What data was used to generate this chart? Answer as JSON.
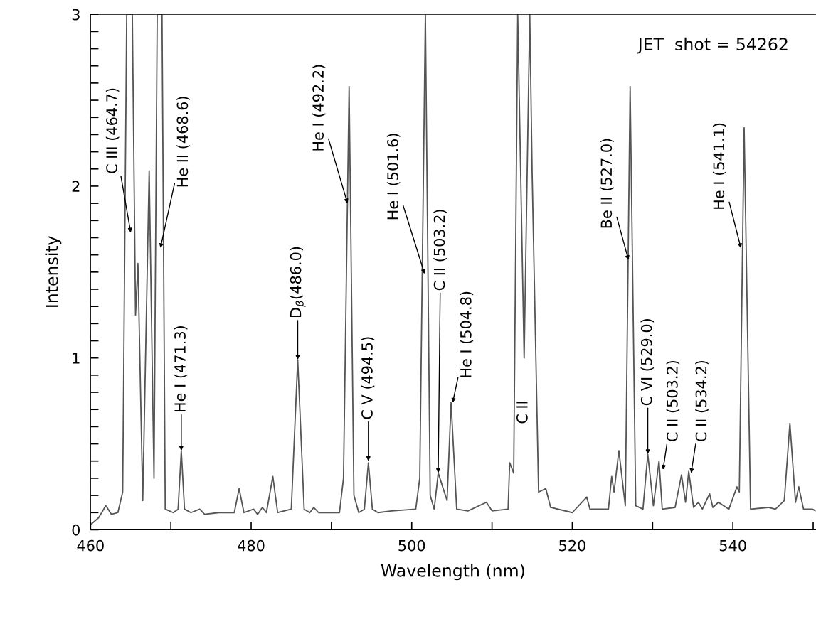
{
  "chart_data": {
    "type": "line",
    "xlabel": "Wavelength (nm)",
    "ylabel": "Intensity",
    "xlim": [
      460,
      550.3
    ],
    "ylim": [
      0,
      3
    ],
    "xticks": [
      460,
      {
        "value": 470,
        "label": null
      },
      480,
      {
        "value": 490,
        "label": null
      },
      500,
      {
        "value": 510,
        "label": null
      },
      520,
      {
        "value": 530,
        "label": null
      },
      540,
      {
        "value": 550,
        "label": null
      }
    ],
    "yticks": [
      0,
      {
        "value": 0.1,
        "label": null
      },
      {
        "value": 0.2,
        "label": null
      },
      {
        "value": 0.3,
        "label": null
      },
      {
        "value": 0.4,
        "label": null
      },
      {
        "value": 0.5,
        "label": null
      },
      {
        "value": 0.6,
        "label": null
      },
      {
        "value": 0.7,
        "label": null
      },
      {
        "value": 0.8,
        "label": null
      },
      {
        "value": 0.9,
        "label": null
      },
      1,
      {
        "value": 1.1,
        "label": null
      },
      {
        "value": 1.2,
        "label": null
      },
      {
        "value": 1.3,
        "label": null
      },
      {
        "value": 1.4,
        "label": null
      },
      {
        "value": 1.5,
        "label": null
      },
      {
        "value": 1.6,
        "label": null
      },
      {
        "value": 1.7,
        "label": null
      },
      {
        "value": 1.8,
        "label": null
      },
      {
        "value": 1.9,
        "label": null
      },
      2,
      {
        "value": 2.1,
        "label": null
      },
      {
        "value": 2.2,
        "label": null
      },
      {
        "value": 2.3,
        "label": null
      },
      {
        "value": 2.4,
        "label": null
      },
      {
        "value": 2.5,
        "label": null
      },
      {
        "value": 2.6,
        "label": null
      },
      {
        "value": 2.7,
        "label": null
      },
      {
        "value": 2.8,
        "label": null
      },
      {
        "value": 2.9,
        "label": null
      },
      3
    ],
    "grid": false,
    "marker": "none",
    "line_style": "solid",
    "series": [
      {
        "color": "#555555",
        "x": [
          460.0,
          461.0,
          461.9,
          462.6,
          463.4,
          464.0,
          464.5,
          465.0,
          465.2,
          465.6,
          465.9,
          466.5,
          467.3,
          467.9,
          468.3,
          468.9,
          469.3,
          470.3,
          470.9,
          471.3,
          471.7,
          472.5,
          473.6,
          474.2,
          476.0,
          477.9,
          478.5,
          479.1,
          480.3,
          480.8,
          481.4,
          481.9,
          482.7,
          483.3,
          485.0,
          485.8,
          486.6,
          487.3,
          487.8,
          488.4,
          491.0,
          491.5,
          492.2,
          492.8,
          493.4,
          494.1,
          494.6,
          495.1,
          495.8,
          497.5,
          500.5,
          501.0,
          501.7,
          502.3,
          502.8,
          503.3,
          504.4,
          504.9,
          505.6,
          507.0,
          509.3,
          510.0,
          512.0,
          512.2,
          512.7,
          513.2,
          514.0,
          514.7,
          515.0,
          515.8,
          516.7,
          517.3,
          520.0,
          521.8,
          522.2,
          524.5,
          524.9,
          525.2,
          525.8,
          526.6,
          527.2,
          527.9,
          528.8,
          529.4,
          530.1,
          530.8,
          531.2,
          532.8,
          533.6,
          534.1,
          534.5,
          535.1,
          535.7,
          536.2,
          537.1,
          537.5,
          538.2,
          539.5,
          540.5,
          540.8,
          541.4,
          542.2,
          544.4,
          545.3,
          546.4,
          547.1,
          547.8,
          548.2,
          548.8,
          549.9,
          550.3
        ],
        "values": [
          0.03,
          0.07,
          0.14,
          0.09,
          0.1,
          0.22,
          3,
          3,
          3,
          1.25,
          1.55,
          0.17,
          2.09,
          0.3,
          3,
          3,
          0.12,
          0.1,
          0.12,
          0.46,
          0.12,
          0.1,
          0.12,
          0.09,
          0.1,
          0.1,
          0.24,
          0.1,
          0.12,
          0.09,
          0.13,
          0.1,
          0.31,
          0.1,
          0.12,
          0.99,
          0.12,
          0.1,
          0.13,
          0.1,
          0.1,
          0.3,
          2.58,
          0.2,
          0.1,
          0.12,
          0.39,
          0.12,
          0.1,
          0.11,
          0.12,
          0.3,
          3,
          0.2,
          0.12,
          0.33,
          0.17,
          0.74,
          0.12,
          0.11,
          0.16,
          0.11,
          0.12,
          0.39,
          0.33,
          3,
          1.0,
          3,
          2.07,
          0.22,
          0.24,
          0.13,
          0.1,
          0.19,
          0.12,
          0.12,
          0.31,
          0.22,
          0.46,
          0.14,
          2.58,
          0.14,
          0.12,
          0.44,
          0.14,
          0.4,
          0.12,
          0.13,
          0.32,
          0.16,
          0.34,
          0.13,
          0.16,
          0.12,
          0.21,
          0.13,
          0.16,
          0.12,
          0.25,
          0.22,
          2.34,
          0.12,
          0.13,
          0.12,
          0.17,
          0.62,
          0.16,
          0.25,
          0.12,
          0.12,
          0.11
        ]
      }
    ],
    "annotations": [
      {
        "text": "C III (464.7)",
        "x": 465.0,
        "y": 1.73
      },
      {
        "text": "He II (468.6)",
        "x": 468.7,
        "y": 1.64
      },
      {
        "text": "He I (471.3)",
        "x": 471.3,
        "y": 0.46
      },
      {
        "text": "D$_{β}$(486.0)",
        "x": 485.8,
        "y": 0.99
      },
      {
        "text": "He I (492.2)",
        "x": 492.0,
        "y": 1.9
      },
      {
        "text": "C V (494.5)",
        "x": 494.6,
        "y": 0.4
      },
      {
        "text": "He I (501.6)",
        "x": 501.6,
        "y": 1.49
      },
      {
        "text": "C II (503.2)",
        "x": 503.3,
        "y": 0.33
      },
      {
        "text": "He I (504.8)",
        "x": 505.1,
        "y": 0.74
      },
      "C II",
      {
        "text": "Be II (527.0)",
        "x": 527.0,
        "y": 1.57
      },
      {
        "text": "C VI (529.0)",
        "x": 529.4,
        "y": 0.44
      },
      {
        "text": "C II (503.2)",
        "x": 531.3,
        "y": 0.35
      },
      {
        "text": "C II (534.2)",
        "x": 534.8,
        "y": 0.33
      },
      {
        "text": "He I (541.1)",
        "x": 541.0,
        "y": 1.64
      },
      "JET  shot = 54262"
    ]
  }
}
